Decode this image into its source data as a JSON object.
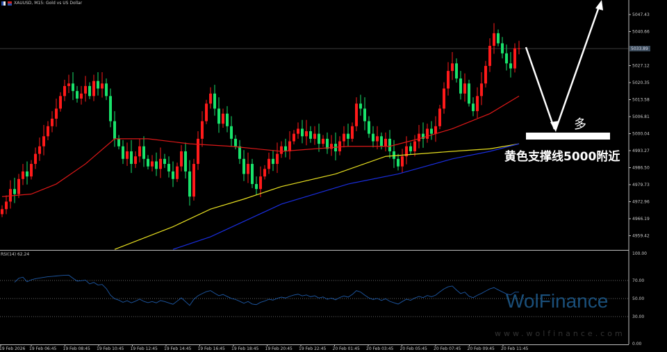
{
  "header": {
    "symbol_title": "XAUUSD, M15:  Gold vs US Dollar"
  },
  "rsi_label": "RSI(14) 62.24",
  "annotation": {
    "bias": "多",
    "support_text": "黄色支撑线5000附近"
  },
  "watermark": {
    "brand": "WolFinance",
    "url": "www.wolfinance.com"
  },
  "colors": {
    "bull": "#ff1a1a",
    "bear": "#19e36b",
    "ma_fast": "#e01818",
    "ma_mid": "#e8e020",
    "ma_slow": "#1a2ee0",
    "rsi": "#1e5aa8",
    "axis": "#c0c0c0",
    "price_label_bg": "#3a4a5a"
  },
  "chart_data": {
    "type": "candlestick",
    "title": "XAUUSD, M15",
    "price_axis_ticks": [
      "5047.43",
      "5040.66",
      "5027.12",
      "5020.35",
      "5013.58",
      "5006.81",
      "5000.04",
      "4993.27",
      "4986.50",
      "4979.73",
      "4972.96",
      "4966.19",
      "4959.42"
    ],
    "current_price": "5033.89",
    "ylim": [
      4953.76,
      5053.23
    ],
    "time_ticks": [
      "19 Feb 2026",
      "19 Feb 06:45",
      "19 Feb 08:45",
      "19 Feb 10:45",
      "19 Feb 12:45",
      "19 Feb 14:45",
      "19 Feb 16:45",
      "19 Feb 18:45",
      "19 Feb 20:45",
      "19 Feb 22:45",
      "20 Feb 01:45",
      "20 Feb 03:45",
      "20 Feb 05:45",
      "20 Feb 07:45",
      "20 Feb 09:45",
      "20 Feb 11:45"
    ],
    "closes": [
      4970,
      4973,
      4978,
      4976,
      4982,
      4985,
      4983,
      4988,
      4992,
      4995,
      4999,
      5003,
      5006,
      5010,
      5015,
      5019,
      5020,
      5017,
      5014,
      5016,
      5019,
      5015,
      5021,
      5018,
      5020,
      5015,
      5005,
      4998,
      4995,
      4990,
      4993,
      4988,
      4991,
      4995,
      4990,
      4987,
      4989,
      4986,
      4990,
      4988,
      4985,
      4982,
      4987,
      4993,
      4985,
      4975,
      4988,
      4998,
      5005,
      5012,
      5016,
      5010,
      5004,
      5008,
      5003,
      4998,
      4995,
      4990,
      4984,
      4988,
      4980,
      4978,
      4983,
      4986,
      4990,
      4988,
      4992,
      4995,
      4993,
      4997,
      5000,
      5002,
      4999,
      5001,
      4998,
      5000,
      4996,
      4998,
      4994,
      4996,
      4993,
      4997,
      5000,
      4998,
      5003,
      5012,
      5010,
      5005,
      5000,
      4997,
      4999,
      4995,
      4998,
      4993,
      4990,
      4987,
      4991,
      4995,
      4993,
      4997,
      5000,
      4998,
      5002,
      5000,
      5003,
      5010,
      5018,
      5025,
      5028,
      5022,
      5016,
      5020,
      5012,
      5009,
      5015,
      5020,
      5027,
      5035,
      5040,
      5036,
      5032,
      5028,
      5026,
      5034,
      5034
    ],
    "moving_averages": [
      {
        "name": "MA fast",
        "color_key": "ma_fast",
        "points": [
          [
            0,
            4975
          ],
          [
            7,
            4976
          ],
          [
            13,
            4980
          ],
          [
            20,
            4988
          ],
          [
            27,
            4998
          ],
          [
            35,
            4998
          ],
          [
            45,
            4996
          ],
          [
            55,
            4995
          ],
          [
            67,
            4993
          ],
          [
            83,
            4995
          ],
          [
            93,
            4995
          ],
          [
            100,
            4998
          ],
          [
            108,
            5002
          ],
          [
            117,
            5008
          ],
          [
            124,
            5015
          ]
        ]
      },
      {
        "name": "MA mid",
        "color_key": "ma_mid",
        "points": [
          [
            27,
            4954
          ],
          [
            41,
            4963
          ],
          [
            50,
            4970
          ],
          [
            58,
            4974
          ],
          [
            67,
            4979
          ],
          [
            80,
            4984
          ],
          [
            92,
            4991
          ],
          [
            100,
            4992
          ],
          [
            108,
            4993
          ],
          [
            117,
            4994
          ],
          [
            124,
            4996
          ]
        ]
      },
      {
        "name": "MA slow",
        "color_key": "ma_slow",
        "points": [
          [
            41,
            4954
          ],
          [
            50,
            4959
          ],
          [
            67,
            4972
          ],
          [
            83,
            4980
          ],
          [
            95,
            4984
          ],
          [
            108,
            4990
          ],
          [
            117,
            4993
          ],
          [
            124,
            4996
          ]
        ]
      }
    ],
    "rsi": {
      "period": 14,
      "levels": [
        70,
        50,
        30
      ],
      "axis_ticks": [
        "100.00",
        "70.00",
        "50.00",
        "30.00",
        "0.00"
      ],
      "last": 62.24
    }
  }
}
